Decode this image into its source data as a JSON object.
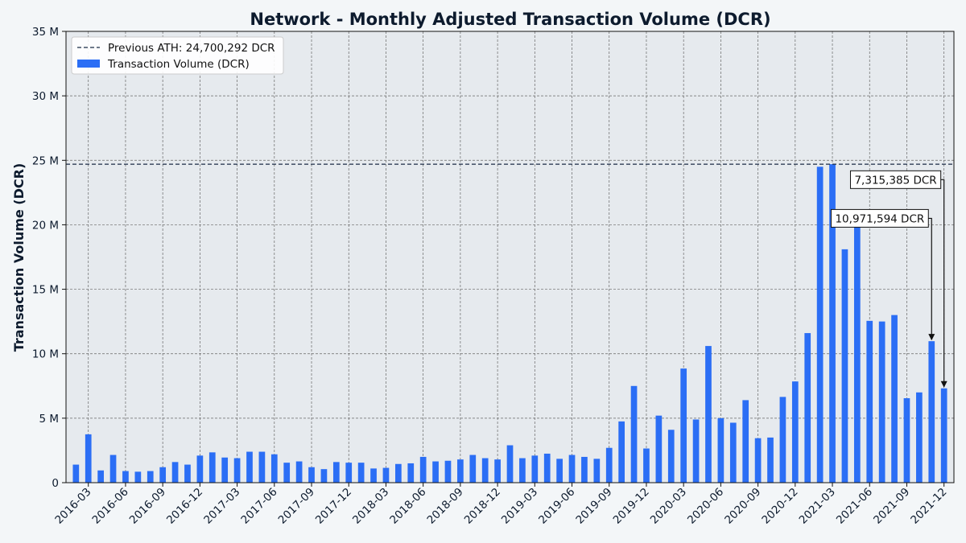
{
  "chart_data": {
    "type": "bar",
    "title": "Network - Monthly Adjusted Transaction Volume (DCR)",
    "xlabel": "",
    "ylabel": "Transaction Volume (DCR)",
    "ylim": [
      0,
      35000000
    ],
    "yticks": [
      0,
      5000000,
      10000000,
      15000000,
      20000000,
      25000000,
      30000000,
      35000000
    ],
    "ytick_labels": [
      "0",
      "5 M",
      "10 M",
      "15 M",
      "20 M",
      "25 M",
      "30 M",
      "35 M"
    ],
    "categories": [
      "2016-02",
      "2016-03",
      "2016-04",
      "2016-05",
      "2016-06",
      "2016-07",
      "2016-08",
      "2016-09",
      "2016-10",
      "2016-11",
      "2016-12",
      "2017-01",
      "2017-02",
      "2017-03",
      "2017-04",
      "2017-05",
      "2017-06",
      "2017-07",
      "2017-08",
      "2017-09",
      "2017-10",
      "2017-11",
      "2017-12",
      "2018-01",
      "2018-02",
      "2018-03",
      "2018-04",
      "2018-05",
      "2018-06",
      "2018-07",
      "2018-08",
      "2018-09",
      "2018-10",
      "2018-11",
      "2018-12",
      "2019-01",
      "2019-02",
      "2019-03",
      "2019-04",
      "2019-05",
      "2019-06",
      "2019-07",
      "2019-08",
      "2019-09",
      "2019-10",
      "2019-11",
      "2019-12",
      "2020-01",
      "2020-02",
      "2020-03",
      "2020-04",
      "2020-05",
      "2020-06",
      "2020-07",
      "2020-08",
      "2020-09",
      "2020-10",
      "2020-11",
      "2020-12",
      "2021-01",
      "2021-02",
      "2021-03",
      "2021-04",
      "2021-05",
      "2021-06",
      "2021-07",
      "2021-08",
      "2021-09",
      "2021-10",
      "2021-11",
      "2021-12"
    ],
    "xtick_labels": [
      "2016-03",
      "2016-06",
      "2016-09",
      "2016-12",
      "2017-03",
      "2017-06",
      "2017-09",
      "2017-12",
      "2018-03",
      "2018-06",
      "2018-09",
      "2018-12",
      "2019-03",
      "2019-06",
      "2019-09",
      "2019-12",
      "2020-03",
      "2020-06",
      "2020-09",
      "2020-12",
      "2021-03",
      "2021-06",
      "2021-09",
      "2021-12"
    ],
    "series": [
      {
        "name": "Transaction Volume (DCR)",
        "color": "#2b6ef5",
        "values": [
          1400000,
          3750000,
          950000,
          2150000,
          900000,
          850000,
          900000,
          1200000,
          1600000,
          1400000,
          2100000,
          2350000,
          1950000,
          1900000,
          2400000,
          2400000,
          2200000,
          1550000,
          1650000,
          1200000,
          1050000,
          1600000,
          1550000,
          1550000,
          1100000,
          1150000,
          1450000,
          1500000,
          2000000,
          1650000,
          1700000,
          1800000,
          2150000,
          1900000,
          1800000,
          2900000,
          1900000,
          2100000,
          2250000,
          1850000,
          2150000,
          2000000,
          1850000,
          2700000,
          4750000,
          7500000,
          2650000,
          5200000,
          4100000,
          8850000,
          4900000,
          10600000,
          5000000,
          4650000,
          6400000,
          3450000,
          3500000,
          6650000,
          7850000,
          11600000,
          24500000,
          24700292,
          18100000,
          20000000,
          12550000,
          12500000,
          13000000,
          6550000,
          7000000,
          10971594,
          7315385
        ]
      }
    ],
    "reference_line": {
      "label": "Previous ATH: 24,700,292 DCR",
      "value": 24700292,
      "color": "#1a2b45"
    },
    "annotations": [
      {
        "label": "7,315,385 DCR",
        "category": "2021-12",
        "value": 7315385,
        "text_y": 23500000
      },
      {
        "label": "10,971,594 DCR",
        "category": "2021-11",
        "value": 10971594,
        "text_y": 20500000
      }
    ],
    "grid": true,
    "legend_position": "top-left"
  }
}
